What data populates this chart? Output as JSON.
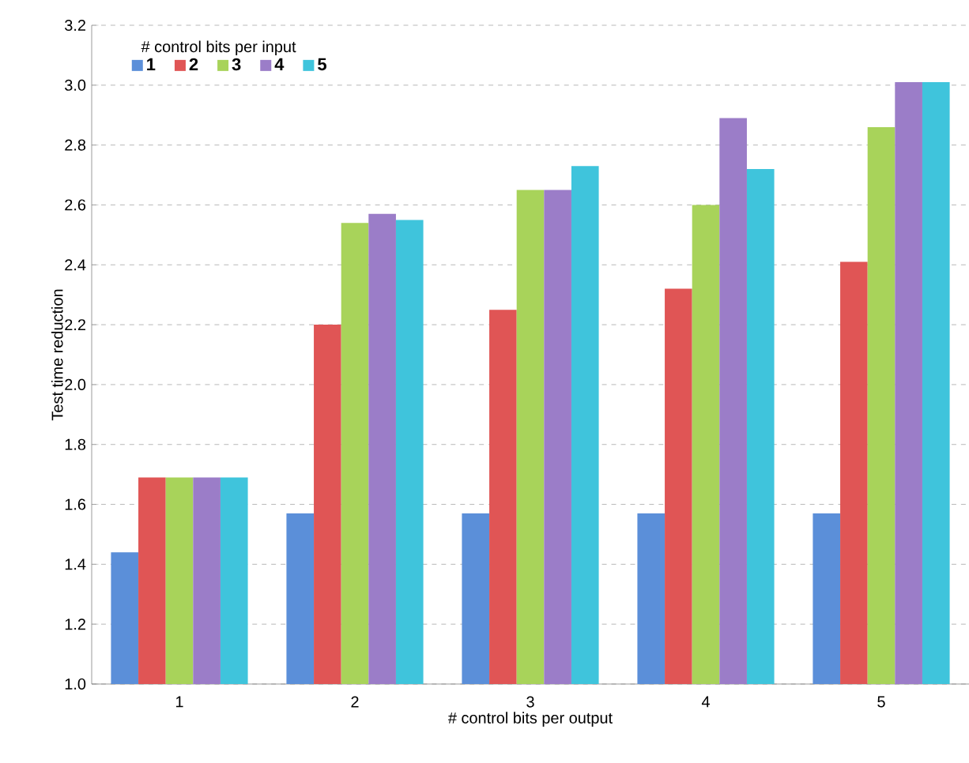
{
  "chart_data": {
    "type": "bar",
    "xlabel": "# control bits per output",
    "ylabel": "Test time reduction",
    "legend_title": "# control bits per input",
    "categories": [
      "1",
      "2",
      "3",
      "4",
      "5"
    ],
    "series": [
      {
        "name": "1",
        "color": "#5b8fd9",
        "values": [
          1.44,
          1.57,
          1.57,
          1.57,
          1.57
        ]
      },
      {
        "name": "2",
        "color": "#e05555",
        "values": [
          1.69,
          2.2,
          2.25,
          2.32,
          2.41
        ]
      },
      {
        "name": "3",
        "color": "#a8d35a",
        "values": [
          1.69,
          2.54,
          2.65,
          2.6,
          2.86
        ]
      },
      {
        "name": "4",
        "color": "#9b7dc8",
        "values": [
          1.69,
          2.57,
          2.65,
          2.89,
          3.01
        ]
      },
      {
        "name": "5",
        "color": "#3fc4dc",
        "values": [
          1.69,
          2.55,
          2.73,
          2.72,
          3.01
        ]
      }
    ],
    "ylim": [
      1.0,
      3.2
    ],
    "yticks": [
      {
        "value": 1.0,
        "label": "1.0"
      },
      {
        "value": 1.2,
        "label": "1.2"
      },
      {
        "value": 1.4,
        "label": "1.4"
      },
      {
        "value": 1.6,
        "label": "1.6"
      },
      {
        "value": 1.8,
        "label": "1.8"
      },
      {
        "value": 2.0,
        "label": "2.0"
      },
      {
        "value": 2.2,
        "label": "2.2"
      },
      {
        "value": 2.4,
        "label": "2.4"
      },
      {
        "value": 2.6,
        "label": "2.6"
      },
      {
        "value": 2.8,
        "label": "2.8"
      },
      {
        "value": 3.0,
        "label": "3.0"
      },
      {
        "value": 3.2,
        "label": "3.2"
      }
    ],
    "grid": "y",
    "legend": "top left"
  }
}
